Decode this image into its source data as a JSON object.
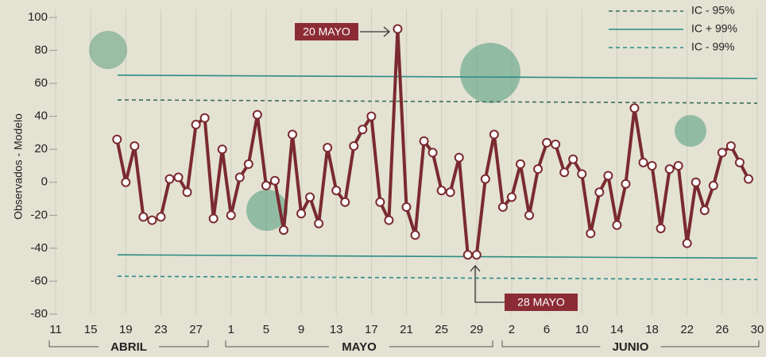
{
  "chart_data": {
    "type": "line",
    "y_label": "Observados - Modelo",
    "annotations": [
      "20 MAYO",
      "28 MAYO"
    ],
    "months": [
      "ABRIL",
      "MAYO",
      "JUNIO"
    ],
    "xlim": [
      0,
      80
    ],
    "xticks": [
      {
        "value": 0,
        "label": "11"
      },
      {
        "value": 4,
        "label": "15"
      },
      {
        "value": 8,
        "label": "19"
      },
      {
        "value": 12,
        "label": "23"
      },
      {
        "value": 16,
        "label": "27"
      },
      {
        "value": 20,
        "label": "1"
      },
      {
        "value": 24,
        "label": "5"
      },
      {
        "value": 28,
        "label": "9"
      },
      {
        "value": 32,
        "label": "13"
      },
      {
        "value": 36,
        "label": "17"
      },
      {
        "value": 40,
        "label": "21"
      },
      {
        "value": 44,
        "label": "25"
      },
      {
        "value": 48,
        "label": "29"
      },
      {
        "value": 52,
        "label": "2"
      },
      {
        "value": 56,
        "label": "6"
      },
      {
        "value": 60,
        "label": "10"
      },
      {
        "value": 64,
        "label": "14"
      },
      {
        "value": 68,
        "label": "18"
      },
      {
        "value": 72,
        "label": "22"
      },
      {
        "value": 76,
        "label": "26"
      },
      {
        "value": 80,
        "label": "30"
      }
    ],
    "ylim": [
      -80,
      100
    ],
    "yticks": [
      100,
      80,
      60,
      40,
      20,
      0,
      -20,
      -40,
      -60,
      -80
    ],
    "grid": true,
    "x": [
      7,
      8,
      9,
      10,
      11,
      12,
      13,
      14,
      15,
      16,
      17,
      18,
      19,
      20,
      21,
      22,
      23,
      24,
      25,
      26,
      27,
      28,
      29,
      30,
      31,
      32,
      33,
      34,
      35,
      36,
      37,
      38,
      39,
      40,
      41,
      42,
      43,
      44,
      45,
      46,
      47,
      48,
      49,
      50,
      51,
      52,
      53,
      54,
      55,
      56,
      57,
      58,
      59,
      60,
      61,
      62,
      63,
      64,
      65,
      66,
      67,
      68,
      69,
      70,
      71,
      72,
      73,
      74,
      75,
      76,
      77,
      78,
      79
    ],
    "series": [
      {
        "color": "#7a2a30",
        "values": [
          26,
          0,
          22,
          -21,
          -23,
          -21,
          2,
          3,
          -6,
          35,
          39,
          -22,
          20,
          -20,
          3,
          11,
          41,
          -2,
          1,
          -29,
          29,
          -19,
          -9,
          -25,
          21,
          -5,
          -12,
          22,
          32,
          40,
          -12,
          -23,
          93,
          -15,
          -32,
          25,
          18,
          -5,
          -6,
          15,
          -44,
          -44,
          2,
          29,
          -15,
          -9,
          11,
          -20,
          8,
          24,
          23,
          6,
          14,
          5,
          -31,
          -6,
          4,
          -26,
          -1,
          45,
          12,
          10,
          -28,
          8,
          10,
          -37,
          0,
          -17,
          -2,
          18,
          22,
          12,
          2
        ]
      }
    ],
    "legend": [
      {
        "name": "IC - 95%",
        "color": "#3a6e5a",
        "dashed": true
      },
      {
        "name": "IC + 99%",
        "color": "#2a8c86",
        "dashed": false
      },
      {
        "name": "IC - 99%",
        "color": "#2a8c86",
        "dashed": true
      }
    ],
    "reference_lines": [
      {
        "color": "#2a8c86",
        "dashed": false,
        "values": [
          65,
          63
        ]
      },
      {
        "color": "#3a6e5a",
        "dashed": true,
        "values": [
          50,
          48
        ]
      },
      {
        "color": "#2a8c86",
        "dashed": false,
        "values": [
          -44,
          -46
        ]
      },
      {
        "color": "#2a8c86",
        "dashed": true,
        "values": [
          -57,
          -59
        ]
      }
    ]
  }
}
